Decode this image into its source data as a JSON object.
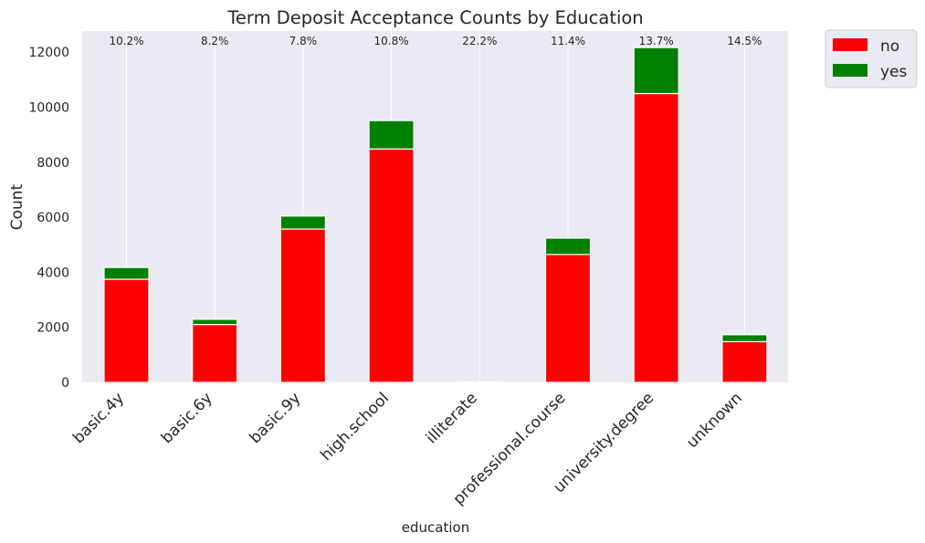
{
  "chart_data": {
    "type": "bar",
    "stacked": true,
    "title": "Term Deposit Acceptance Counts by Education",
    "xlabel": "education",
    "ylabel": "Count",
    "categories": [
      "basic.4y",
      "basic.6y",
      "basic.9y",
      "high.school",
      "illiterate",
      "professional.course",
      "university.degree",
      "unknown"
    ],
    "series": [
      {
        "name": "no",
        "color": "#ff0000",
        "values": [
          3748,
          2104,
          5572,
          8484,
          14,
          4648,
          10498,
          1480
        ]
      },
      {
        "name": "yes",
        "color": "#008000",
        "values": [
          428,
          188,
          473,
          1031,
          4,
          595,
          1670,
          251
        ]
      }
    ],
    "annotations": [
      "10.2%",
      "8.2%",
      "7.8%",
      "10.8%",
      "22.2%",
      "11.4%",
      "13.7%",
      "14.5%"
    ],
    "yticks": [
      0,
      2000,
      4000,
      6000,
      8000,
      10000,
      12000
    ],
    "ylim": [
      0,
      12770
    ],
    "grid": true,
    "background": "#eaeaf2",
    "legend_position": "outside-top-right"
  }
}
